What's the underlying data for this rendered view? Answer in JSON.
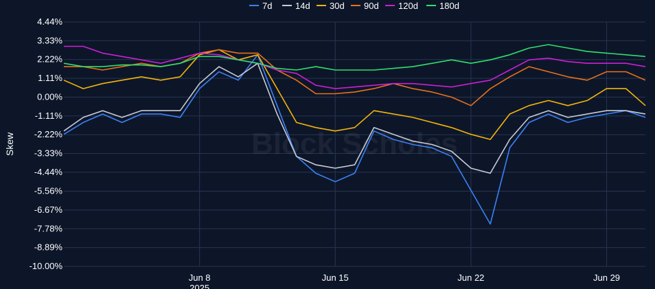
{
  "chart_data": {
    "type": "line",
    "ylabel": "Skew",
    "xlabel": "",
    "y_unit": "%",
    "ylim": [
      -10.0,
      4.44
    ],
    "xlim": [
      "2025-06-01",
      "2025-07-01"
    ],
    "y_ticks": [
      4.44,
      3.33,
      2.22,
      1.11,
      0.0,
      -1.11,
      -2.22,
      -3.33,
      -4.44,
      -5.56,
      -6.67,
      -7.78,
      -8.89,
      -10.0
    ],
    "y_tick_labels": [
      "4.44%",
      "3.33%",
      "2.22%",
      "1.11%",
      "0.00%",
      "-1.11%",
      "-2.22%",
      "-3.33%",
      "-4.44%",
      "-5.56%",
      "-6.67%",
      "-7.78%",
      "-8.89%",
      "-10.00%"
    ],
    "x_ticks": [
      {
        "date": "2025-06-08",
        "label": "Jun 8",
        "sublabel": "2025"
      },
      {
        "date": "2025-06-15",
        "label": "Jun 15",
        "sublabel": ""
      },
      {
        "date": "2025-06-22",
        "label": "Jun 22",
        "sublabel": ""
      },
      {
        "date": "2025-06-29",
        "label": "Jun 29",
        "sublabel": ""
      }
    ],
    "grid": true,
    "legend_position": "top",
    "watermark": "Block Scholes",
    "series": [
      {
        "name": "7d",
        "color": "#3b82f6",
        "x": [
          "2025-06-01",
          "2025-06-02",
          "2025-06-03",
          "2025-06-04",
          "2025-06-05",
          "2025-06-06",
          "2025-06-07",
          "2025-06-08",
          "2025-06-09",
          "2025-06-10",
          "2025-06-11",
          "2025-06-12",
          "2025-06-13",
          "2025-06-14",
          "2025-06-15",
          "2025-06-16",
          "2025-06-17",
          "2025-06-18",
          "2025-06-19",
          "2025-06-20",
          "2025-06-21",
          "2025-06-22",
          "2025-06-23",
          "2025-06-24",
          "2025-06-25",
          "2025-06-26",
          "2025-06-27",
          "2025-06-28",
          "2025-06-29",
          "2025-06-30",
          "2025-07-01"
        ],
        "y": [
          -2.2,
          -1.5,
          -1.0,
          -1.5,
          -1.0,
          -1.0,
          -1.2,
          0.5,
          1.5,
          1.0,
          2.5,
          -0.5,
          -3.5,
          -4.5,
          -5.0,
          -4.5,
          -2.0,
          -2.5,
          -2.8,
          -3.0,
          -3.5,
          -5.5,
          -7.5,
          -3.0,
          -1.5,
          -1.0,
          -1.5,
          -1.2,
          -1.0,
          -0.8,
          -1.2
        ]
      },
      {
        "name": "14d",
        "color": "#c8ccd4",
        "x": [
          "2025-06-01",
          "2025-06-02",
          "2025-06-03",
          "2025-06-04",
          "2025-06-05",
          "2025-06-06",
          "2025-06-07",
          "2025-06-08",
          "2025-06-09",
          "2025-06-10",
          "2025-06-11",
          "2025-06-12",
          "2025-06-13",
          "2025-06-14",
          "2025-06-15",
          "2025-06-16",
          "2025-06-17",
          "2025-06-18",
          "2025-06-19",
          "2025-06-20",
          "2025-06-21",
          "2025-06-22",
          "2025-06-23",
          "2025-06-24",
          "2025-06-25",
          "2025-06-26",
          "2025-06-27",
          "2025-06-28",
          "2025-06-29",
          "2025-06-30",
          "2025-07-01"
        ],
        "y": [
          -2.0,
          -1.2,
          -0.8,
          -1.2,
          -0.8,
          -0.8,
          -0.8,
          0.8,
          1.8,
          1.2,
          2.0,
          -1.0,
          -3.5,
          -4.0,
          -4.2,
          -4.0,
          -1.8,
          -2.2,
          -2.6,
          -2.8,
          -3.2,
          -4.2,
          -4.5,
          -2.5,
          -1.2,
          -0.8,
          -1.2,
          -1.0,
          -0.8,
          -0.8,
          -1.0
        ]
      },
      {
        "name": "30d",
        "color": "#f5b50a",
        "x": [
          "2025-06-01",
          "2025-06-02",
          "2025-06-03",
          "2025-06-04",
          "2025-06-05",
          "2025-06-06",
          "2025-06-07",
          "2025-06-08",
          "2025-06-09",
          "2025-06-10",
          "2025-06-11",
          "2025-06-12",
          "2025-06-13",
          "2025-06-14",
          "2025-06-15",
          "2025-06-16",
          "2025-06-17",
          "2025-06-18",
          "2025-06-19",
          "2025-06-20",
          "2025-06-21",
          "2025-06-22",
          "2025-06-23",
          "2025-06-24",
          "2025-06-25",
          "2025-06-26",
          "2025-06-27",
          "2025-06-28",
          "2025-06-29",
          "2025-06-30",
          "2025-07-01"
        ],
        "y": [
          1.0,
          0.5,
          0.8,
          1.0,
          1.2,
          1.0,
          1.2,
          2.5,
          2.8,
          2.2,
          2.5,
          0.5,
          -1.5,
          -1.8,
          -2.0,
          -1.8,
          -0.8,
          -1.0,
          -1.2,
          -1.5,
          -1.8,
          -2.2,
          -2.5,
          -1.0,
          -0.5,
          -0.2,
          -0.5,
          -0.2,
          0.5,
          0.5,
          -0.5
        ]
      },
      {
        "name": "90d",
        "color": "#e8711c",
        "x": [
          "2025-06-01",
          "2025-06-02",
          "2025-06-03",
          "2025-06-04",
          "2025-06-05",
          "2025-06-06",
          "2025-06-07",
          "2025-06-08",
          "2025-06-09",
          "2025-06-10",
          "2025-06-11",
          "2025-06-12",
          "2025-06-13",
          "2025-06-14",
          "2025-06-15",
          "2025-06-16",
          "2025-06-17",
          "2025-06-18",
          "2025-06-19",
          "2025-06-20",
          "2025-06-21",
          "2025-06-22",
          "2025-06-23",
          "2025-06-24",
          "2025-06-25",
          "2025-06-26",
          "2025-06-27",
          "2025-06-28",
          "2025-06-29",
          "2025-06-30",
          "2025-07-01"
        ],
        "y": [
          1.8,
          1.8,
          1.6,
          1.8,
          2.0,
          1.8,
          2.0,
          2.6,
          2.8,
          2.6,
          2.6,
          1.6,
          1.0,
          0.2,
          0.2,
          0.3,
          0.5,
          0.8,
          0.5,
          0.3,
          0.0,
          -0.5,
          0.5,
          1.2,
          1.8,
          1.5,
          1.2,
          1.0,
          1.5,
          1.5,
          1.0
        ]
      },
      {
        "name": "120d",
        "color": "#cc1fd6",
        "x": [
          "2025-06-01",
          "2025-06-02",
          "2025-06-03",
          "2025-06-04",
          "2025-06-05",
          "2025-06-06",
          "2025-06-07",
          "2025-06-08",
          "2025-06-09",
          "2025-06-10",
          "2025-06-11",
          "2025-06-12",
          "2025-06-13",
          "2025-06-14",
          "2025-06-15",
          "2025-06-16",
          "2025-06-17",
          "2025-06-18",
          "2025-06-19",
          "2025-06-20",
          "2025-06-21",
          "2025-06-22",
          "2025-06-23",
          "2025-06-24",
          "2025-06-25",
          "2025-06-26",
          "2025-06-27",
          "2025-06-28",
          "2025-06-29",
          "2025-06-30",
          "2025-07-01"
        ],
        "y": [
          3.0,
          3.0,
          2.6,
          2.4,
          2.2,
          2.0,
          2.3,
          2.6,
          2.5,
          2.2,
          2.0,
          1.6,
          1.4,
          0.7,
          0.5,
          0.6,
          0.7,
          0.8,
          0.8,
          0.7,
          0.6,
          0.8,
          1.0,
          1.6,
          2.2,
          2.3,
          2.1,
          2.0,
          2.0,
          2.0,
          1.8
        ]
      },
      {
        "name": "180d",
        "color": "#2fe06b",
        "x": [
          "2025-06-01",
          "2025-06-02",
          "2025-06-03",
          "2025-06-04",
          "2025-06-05",
          "2025-06-06",
          "2025-06-07",
          "2025-06-08",
          "2025-06-09",
          "2025-06-10",
          "2025-06-11",
          "2025-06-12",
          "2025-06-13",
          "2025-06-14",
          "2025-06-15",
          "2025-06-16",
          "2025-06-17",
          "2025-06-18",
          "2025-06-19",
          "2025-06-20",
          "2025-06-21",
          "2025-06-22",
          "2025-06-23",
          "2025-06-24",
          "2025-06-25",
          "2025-06-26",
          "2025-06-27",
          "2025-06-28",
          "2025-06-29",
          "2025-06-30",
          "2025-07-01"
        ],
        "y": [
          2.0,
          1.8,
          1.8,
          1.9,
          1.9,
          1.8,
          2.0,
          2.4,
          2.4,
          2.2,
          2.0,
          1.7,
          1.6,
          1.8,
          1.6,
          1.6,
          1.6,
          1.7,
          1.8,
          2.0,
          2.2,
          2.0,
          2.2,
          2.5,
          2.9,
          3.1,
          2.9,
          2.7,
          2.6,
          2.5,
          2.4
        ]
      }
    ]
  }
}
